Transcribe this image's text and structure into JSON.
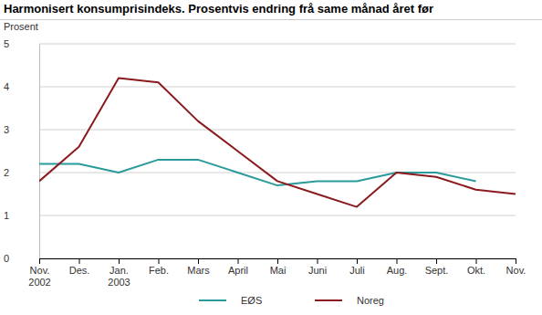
{
  "chart_data": {
    "type": "line",
    "title": "Harmonisert konsumprisindeks. Prosentvis endring frå same månad året før",
    "y_label": "Prosent",
    "categories": [
      "Nov. 2002",
      "Des.",
      "Jan. 2003",
      "Feb.",
      "Mars",
      "April",
      "Mai",
      "Juni",
      "Juli",
      "Aug.",
      "Sept.",
      "Okt.",
      "Nov."
    ],
    "series": [
      {
        "name": "EØS",
        "color": "#2b9a9b",
        "values": [
          2.2,
          2.2,
          2.0,
          2.3,
          2.3,
          2.0,
          1.7,
          1.8,
          1.8,
          2.0,
          2.0,
          1.8,
          null
        ]
      },
      {
        "name": "Noreg",
        "color": "#8b1a1e",
        "values": [
          1.8,
          2.6,
          4.2,
          4.1,
          3.2,
          2.5,
          1.8,
          1.5,
          1.2,
          2.0,
          1.9,
          1.6,
          1.5
        ]
      }
    ],
    "ylim": [
      0,
      5
    ],
    "yticks": [
      0,
      1,
      2,
      3,
      4,
      5
    ],
    "grid": true,
    "legend": "bottom"
  }
}
